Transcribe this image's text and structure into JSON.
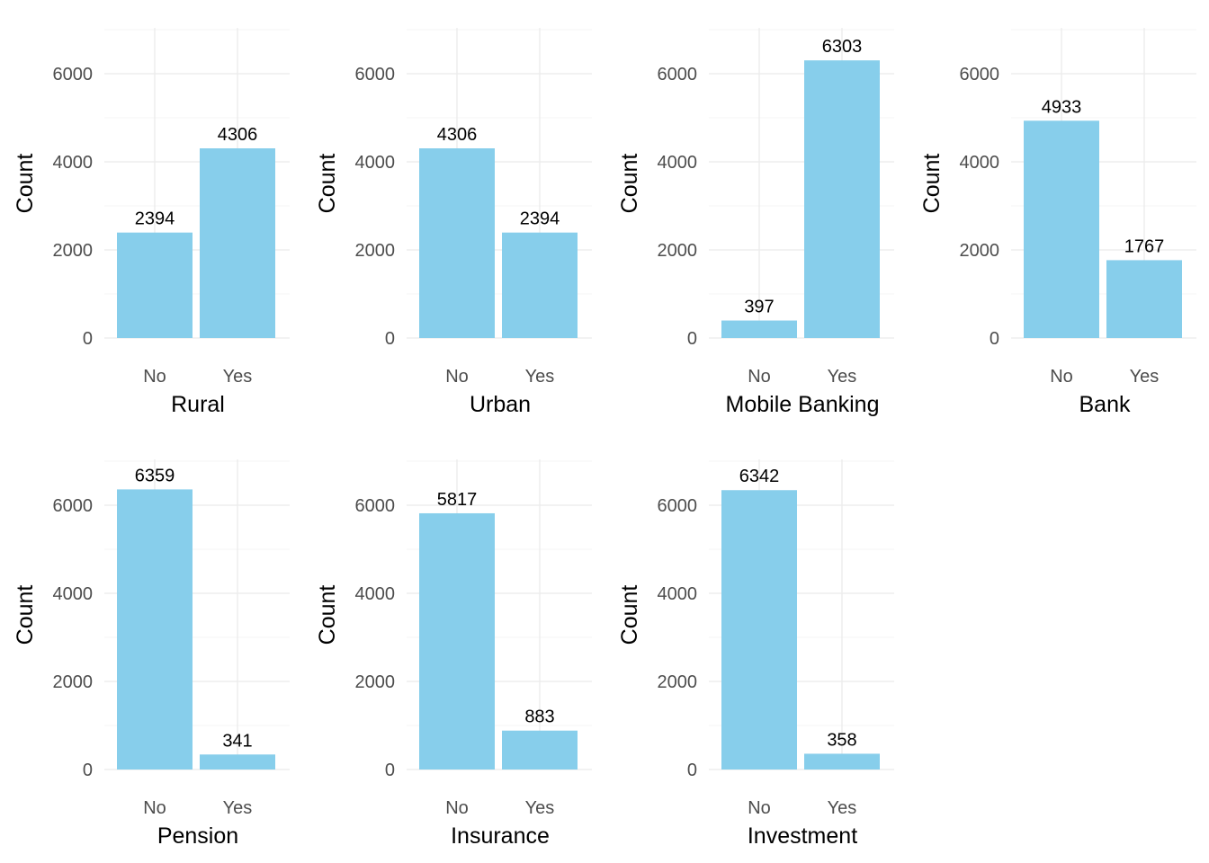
{
  "chart_data": [
    {
      "type": "bar",
      "categories": [
        "No",
        "Yes"
      ],
      "values": [
        2394,
        4306
      ],
      "xlabel": "Rural",
      "ylabel": "Count",
      "ylim": [
        0,
        7200
      ],
      "yticks": [
        0,
        2000,
        4000,
        6000
      ],
      "bar_color": "#87CEEB",
      "grid": true
    },
    {
      "type": "bar",
      "categories": [
        "No",
        "Yes"
      ],
      "values": [
        4306,
        2394
      ],
      "xlabel": "Urban",
      "ylabel": "Count",
      "ylim": [
        0,
        7200
      ],
      "yticks": [
        0,
        2000,
        4000,
        6000
      ],
      "bar_color": "#87CEEB",
      "grid": true
    },
    {
      "type": "bar",
      "categories": [
        "No",
        "Yes"
      ],
      "values": [
        397,
        6303
      ],
      "xlabel": "Mobile Banking",
      "ylabel": "Count",
      "ylim": [
        0,
        7200
      ],
      "yticks": [
        0,
        2000,
        4000,
        6000
      ],
      "bar_color": "#87CEEB",
      "grid": true
    },
    {
      "type": "bar",
      "categories": [
        "No",
        "Yes"
      ],
      "values": [
        4933,
        1767
      ],
      "xlabel": "Bank",
      "ylabel": "Count",
      "ylim": [
        0,
        7200
      ],
      "yticks": [
        0,
        2000,
        4000,
        6000
      ],
      "bar_color": "#87CEEB",
      "grid": true
    },
    {
      "type": "bar",
      "categories": [
        "No",
        "Yes"
      ],
      "values": [
        6359,
        341
      ],
      "xlabel": "Pension",
      "ylabel": "Count",
      "ylim": [
        0,
        7200
      ],
      "yticks": [
        0,
        2000,
        4000,
        6000
      ],
      "bar_color": "#87CEEB",
      "grid": true
    },
    {
      "type": "bar",
      "categories": [
        "No",
        "Yes"
      ],
      "values": [
        5817,
        883
      ],
      "xlabel": "Insurance",
      "ylabel": "Count",
      "ylim": [
        0,
        7200
      ],
      "yticks": [
        0,
        2000,
        4000,
        6000
      ],
      "bar_color": "#87CEEB",
      "grid": true
    },
    {
      "type": "bar",
      "categories": [
        "No",
        "Yes"
      ],
      "values": [
        6342,
        358
      ],
      "xlabel": "Investment",
      "ylabel": "Count",
      "ylim": [
        0,
        7200
      ],
      "yticks": [
        0,
        2000,
        4000,
        6000
      ],
      "bar_color": "#87CEEB",
      "grid": true
    }
  ]
}
